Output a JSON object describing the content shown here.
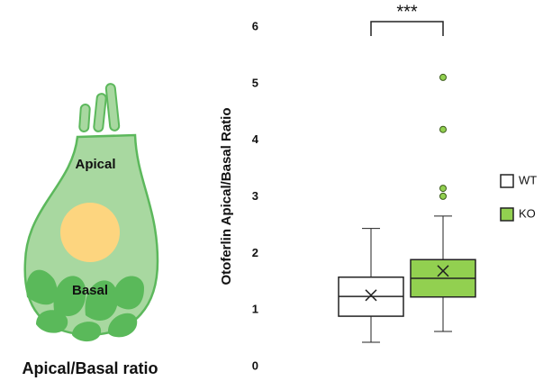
{
  "diagram": {
    "apical_label": "Apical",
    "basal_label": "Basal",
    "caption": "Apical/Basal ratio"
  },
  "chart_data": {
    "type": "box",
    "y_label": "Otoferlin Apical/Basal Ratio",
    "significance": "***",
    "ylim": [
      0,
      6
    ],
    "yticks": [
      0,
      1,
      2,
      3,
      4,
      5,
      6
    ],
    "grid": false,
    "series": [
      {
        "name": "WT",
        "color": "#ffffff",
        "whisker_low": 0.43,
        "q1": 0.89,
        "median": 1.24,
        "q3": 1.58,
        "whisker_high": 2.44,
        "mean": 1.26,
        "outliers": []
      },
      {
        "name": "KO",
        "color": "#92d050",
        "whisker_low": 0.62,
        "q1": 1.23,
        "median": 1.56,
        "q3": 1.89,
        "whisker_high": 2.66,
        "mean": 1.69,
        "outliers": [
          5.11,
          4.19,
          3.15,
          3.01
        ]
      }
    ]
  }
}
